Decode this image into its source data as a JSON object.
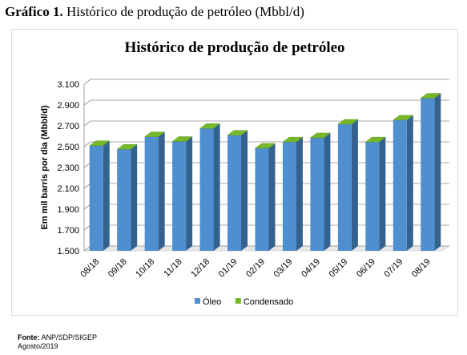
{
  "caption": {
    "label": "Gráfico 1.",
    "text": "Histórico de produção de petróleo (Mbbl/d)"
  },
  "source": {
    "label": "Fonte:",
    "text": "ANP/SDP/SIGEP",
    "date": "Agosto/2019"
  },
  "colors": {
    "oleo_front": "#4f8fd0",
    "oleo_side": "#33628f",
    "oleo_top": "#7eb0e0",
    "condensado": "#76b82a",
    "grid": "#8c8c8c"
  },
  "chart_data": {
    "type": "bar",
    "title": "Histórico de produção de petróleo",
    "xlabel": "",
    "ylabel": "Em mil barris por dia (Mbbl/d)",
    "ylim": [
      1500,
      3100
    ],
    "yticks": [
      1500,
      1700,
      1900,
      2100,
      2300,
      2500,
      2700,
      2900,
      3100
    ],
    "ytick_labels": [
      "1.500",
      "1.700",
      "1.900",
      "2.100",
      "2.300",
      "2.500",
      "2.700",
      "2.900",
      "3.100"
    ],
    "categories": [
      "08/18",
      "09/18",
      "10/18",
      "11/18",
      "12/18",
      "01/19",
      "02/19",
      "03/19",
      "04/19",
      "05/19",
      "06/19",
      "07/19",
      "08/19"
    ],
    "series": [
      {
        "name": "Óleo",
        "values": [
          2510,
          2475,
          2595,
          2550,
          2675,
          2610,
          2485,
          2545,
          2585,
          2715,
          2545,
          2755,
          2965
        ]
      },
      {
        "name": "Condensado",
        "values": [
          20,
          20,
          20,
          20,
          20,
          20,
          20,
          20,
          20,
          20,
          20,
          20,
          20
        ]
      }
    ],
    "legend_position": "bottom",
    "grid": true
  }
}
